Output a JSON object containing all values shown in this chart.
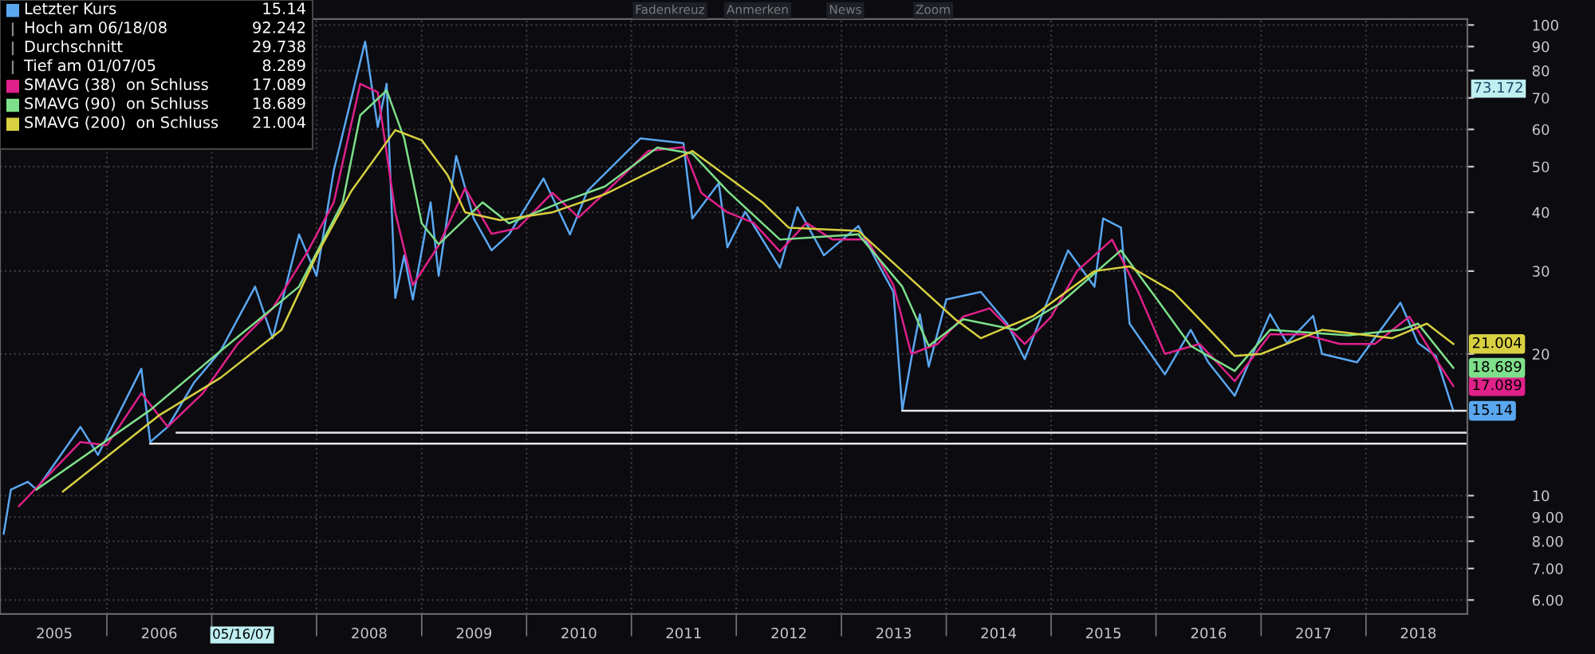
{
  "chart_data": {
    "type": "line",
    "log": "y",
    "grid": true,
    "legend": "top left",
    "marker": "none",
    "line_style": "solid",
    "xlim": [
      "2004-12-25",
      "2018-12-20"
    ],
    "ylim": [
      5.6,
      103
    ],
    "xticks": [
      {
        "value": "2005-07-02",
        "label": "2005"
      },
      {
        "value": "2006-07-02",
        "label": "2006"
      },
      {
        "value": "2008-07-02",
        "label": "2008"
      },
      {
        "value": "2009-07-02",
        "label": "2009"
      },
      {
        "value": "2010-07-02",
        "label": "2010"
      },
      {
        "value": "2011-07-02",
        "label": "2011"
      },
      {
        "value": "2012-07-02",
        "label": "2012"
      },
      {
        "value": "2013-07-02",
        "label": "2013"
      },
      {
        "value": "2014-07-02",
        "label": "2014"
      },
      {
        "value": "2015-07-02",
        "label": "2015"
      },
      {
        "value": "2016-07-02",
        "label": "2016"
      },
      {
        "value": "2017-07-02",
        "label": "2017"
      },
      {
        "value": "2018-07-02",
        "label": "2018"
      },
      {
        "value": "2006-01-01",
        "label": null
      },
      {
        "value": "2007-01-01",
        "label": null
      },
      {
        "value": "2008-01-01",
        "label": null
      },
      {
        "value": "2009-01-01",
        "label": null
      },
      {
        "value": "2010-01-01",
        "label": null
      },
      {
        "value": "2011-01-01",
        "label": null
      },
      {
        "value": "2012-01-01",
        "label": null
      },
      {
        "value": "2013-01-01",
        "label": null
      },
      {
        "value": "2014-01-01",
        "label": null
      },
      {
        "value": "2015-01-01",
        "label": null
      },
      {
        "value": "2016-01-01",
        "label": null
      },
      {
        "value": "2017-01-01",
        "label": null
      },
      {
        "value": "2018-01-01",
        "label": null
      }
    ],
    "yticks": [
      {
        "value": 6,
        "label": "6.00"
      },
      {
        "value": 7,
        "label": "7.00"
      },
      {
        "value": 8,
        "label": "8.00"
      },
      {
        "value": 9,
        "label": "9.00"
      },
      10,
      20,
      30,
      40,
      50,
      60,
      70,
      80,
      90,
      100
    ],
    "annotations": [
      "Hoch am 06/18/08 92.242",
      "Durchschnitt 29.738",
      "Tief am 01/07/05 8.289",
      "05/16/07",
      "73.172",
      "Fadenkreuz",
      "Anmerken",
      "News",
      "Zoom"
    ],
    "series": [
      {
        "name": "Letzter Kurs",
        "color": "#5aa7f0",
        "x": [
          "2005-01-07",
          "2005-02",
          "2005-04",
          "2005-05",
          "2005-10",
          "2005-12",
          "2006-05",
          "2006-06",
          "2006-08",
          "2006-11",
          "2007-02",
          "2007-06",
          "2007-08",
          "2007-11",
          "2008-01",
          "2008-03",
          "2008-06-18",
          "2008-08",
          "2008-09",
          "2008-10",
          "2008-11",
          "2008-12",
          "2009-02",
          "2009-03",
          "2009-05",
          "2009-07",
          "2009-09",
          "2009-11",
          "2010-03",
          "2010-06",
          "2010-08",
          "2011-02",
          "2011-07",
          "2011-08",
          "2011-11",
          "2011-12",
          "2012-02",
          "2012-06",
          "2012-08",
          "2012-11",
          "2013-03",
          "2013-05",
          "2013-07",
          "2013-08",
          "2013-09",
          "2013-10",
          "2013-11",
          "2014-01",
          "2014-05",
          "2014-08",
          "2014-10",
          "2014-12",
          "2015-03",
          "2015-06",
          "2015-07",
          "2015-09",
          "2015-10",
          "2016-02",
          "2016-05",
          "2016-07",
          "2016-10",
          "2017-02",
          "2017-04",
          "2017-07",
          "2017-08",
          "2017-12",
          "2018-05",
          "2018-07",
          "2018-09",
          "2018-11"
        ],
        "values": [
          8.3,
          10.3,
          10.7,
          10.3,
          14.0,
          12.2,
          18.6,
          13.0,
          14.0,
          17.4,
          20.3,
          27.8,
          21.6,
          35.9,
          29.3,
          49.1,
          92.2,
          60.7,
          75,
          26.3,
          32.4,
          26.1,
          42,
          29.3,
          52.7,
          38.8,
          33.2,
          35.9,
          47.2,
          35.9,
          44.4,
          57.4,
          56.1,
          38.8,
          46.1,
          33.7,
          40.1,
          30.5,
          41,
          32.4,
          37.4,
          31.7,
          27.1,
          15.2,
          19.5,
          24.3,
          18.8,
          26.1,
          27.1,
          23.2,
          19.5,
          24.3,
          33.2,
          27.8,
          38.8,
          37.1,
          23.2,
          18.1,
          22.5,
          19.2,
          16.3,
          24.3,
          21.1,
          24.1,
          20.0,
          19.2,
          25.7,
          21.1,
          19.8,
          15.14
        ],
        "value_labels": [
          null,
          null,
          null,
          null,
          null,
          null,
          null,
          null,
          null,
          null,
          null,
          null,
          null,
          null,
          null,
          null,
          null,
          null,
          null,
          null,
          null,
          null,
          null,
          null,
          null,
          null,
          null,
          null,
          null,
          null,
          null,
          null,
          null,
          null,
          null,
          null,
          null,
          null,
          null,
          null,
          null,
          null,
          null,
          null,
          null,
          null,
          null,
          null,
          null,
          null,
          null,
          null,
          null,
          null,
          null,
          null,
          null,
          null,
          null,
          null,
          null,
          null,
          null,
          null,
          null,
          null,
          null,
          null,
          null,
          "15.14"
        ]
      },
      {
        "name": "SMAVG (38)  on Schluss",
        "color": "#e0218a",
        "x": [
          "2005-03",
          "2005-10",
          "2006-01",
          "2006-05",
          "2006-08",
          "2006-12",
          "2007-04",
          "2007-08",
          "2007-12",
          "2008-03",
          "2008-06",
          "2008-08",
          "2008-10",
          "2008-12",
          "2009-03",
          "2009-06",
          "2009-09",
          "2009-12",
          "2010-04",
          "2010-07",
          "2010-10",
          "2011-03",
          "2011-07",
          "2011-09",
          "2011-12",
          "2012-03",
          "2012-06",
          "2012-09",
          "2012-12",
          "2013-04",
          "2013-07",
          "2013-09",
          "2013-12",
          "2014-03",
          "2014-06",
          "2014-10",
          "2015-01",
          "2015-04",
          "2015-08",
          "2015-11",
          "2016-02",
          "2016-06",
          "2016-10",
          "2017-02",
          "2017-06",
          "2017-10",
          "2018-02",
          "2018-06",
          "2018-09",
          "2018-11"
        ],
        "values": [
          9.5,
          13.0,
          12.8,
          16.5,
          14.0,
          16.5,
          21,
          25,
          33,
          42,
          75,
          72,
          40,
          28,
          34,
          45,
          36,
          37,
          44,
          39,
          44,
          54,
          55,
          44,
          40,
          38,
          33,
          38,
          35,
          35,
          28,
          20,
          21,
          24,
          25,
          21,
          24,
          30,
          35,
          27,
          20,
          21,
          17.5,
          22,
          22,
          21,
          21,
          24,
          19.5,
          17.089
        ],
        "value_labels": [
          null,
          null,
          null,
          null,
          null,
          null,
          null,
          null,
          null,
          null,
          null,
          null,
          null,
          null,
          null,
          null,
          null,
          null,
          null,
          null,
          null,
          null,
          null,
          null,
          null,
          null,
          null,
          null,
          null,
          null,
          null,
          null,
          null,
          null,
          null,
          null,
          null,
          null,
          null,
          null,
          null,
          null,
          null,
          null,
          null,
          null,
          null,
          null,
          null,
          "17.089"
        ]
      },
      {
        "name": "SMAVG (90)  on Schluss",
        "color": "#7ee08a",
        "x": [
          "2005-05",
          "2006-06",
          "2007-02",
          "2007-11",
          "2008-04",
          "2008-06",
          "2008-09",
          "2008-11",
          "2009-01",
          "2009-03",
          "2009-08",
          "2009-11",
          "2010-05",
          "2010-10",
          "2011-04",
          "2011-08",
          "2011-12",
          "2012-06",
          "2013-03",
          "2013-08",
          "2013-11",
          "2014-03",
          "2014-09",
          "2015-02",
          "2015-09",
          "2016-01",
          "2016-05",
          "2016-10",
          "2017-02",
          "2017-11",
          "2018-05",
          "2018-07",
          "2018-11"
        ],
        "values": [
          10.3,
          15.2,
          20.3,
          27.8,
          42,
          64.3,
          72.6,
          57.4,
          37.9,
          34.2,
          42,
          37.9,
          42,
          45.4,
          54.9,
          53.3,
          44.4,
          35.0,
          35.9,
          27.8,
          20.8,
          23.7,
          22.5,
          25.6,
          33.2,
          26.3,
          20.8,
          18.4,
          22.5,
          21.9,
          22.5,
          23.2,
          18.689
        ],
        "value_labels": [
          null,
          null,
          null,
          null,
          null,
          null,
          null,
          null,
          null,
          null,
          null,
          null,
          null,
          null,
          null,
          null,
          null,
          null,
          null,
          null,
          null,
          null,
          null,
          null,
          null,
          null,
          null,
          null,
          null,
          null,
          null,
          null,
          "18.689"
        ]
      },
      {
        "name": "SMAVG (200)  on Schluss",
        "color": "#d8d040",
        "x": [
          "2005-08",
          "2006-07",
          "2007-02",
          "2007-09",
          "2008-01",
          "2008-05",
          "2008-10",
          "2009-01",
          "2009-04",
          "2009-06",
          "2009-10",
          "2010-04",
          "2010-10",
          "2011-08",
          "2012-04",
          "2012-07",
          "2013-03",
          "2013-08",
          "2014-02",
          "2014-05",
          "2014-11",
          "2015-06",
          "2015-10",
          "2016-03",
          "2016-10",
          "2017-01",
          "2017-08",
          "2018-04",
          "2018-08",
          "2018-11"
        ],
        "values": [
          10.2,
          14.8,
          17.8,
          22.5,
          32.4,
          44.4,
          59.8,
          56.9,
          48,
          40,
          38.5,
          40,
          43.7,
          54,
          42,
          37.1,
          36.5,
          30,
          23.7,
          21.6,
          24.1,
          30,
          30.7,
          27.1,
          19.8,
          20,
          22.5,
          21.6,
          23.2,
          21.004
        ],
        "value_labels": [
          null,
          null,
          null,
          null,
          null,
          null,
          null,
          null,
          null,
          null,
          null,
          null,
          null,
          null,
          null,
          null,
          null,
          null,
          null,
          null,
          null,
          null,
          null,
          null,
          null,
          null,
          null,
          null,
          null,
          "21.004"
        ]
      },
      {
        "color": "#e8e8e8",
        "x": [
          "2006-09",
          "2018-12-20"
        ],
        "values": [
          13.6,
          13.6
        ]
      },
      {
        "color": "#e8e8e8",
        "x": [
          "2006-06",
          "2018-12-20"
        ],
        "values": [
          12.9,
          12.9
        ]
      },
      {
        "color": "#e8e8e8",
        "x": [
          "2013-08",
          "2018-12-20"
        ],
        "values": [
          15.14,
          15.14
        ]
      }
    ]
  }
}
